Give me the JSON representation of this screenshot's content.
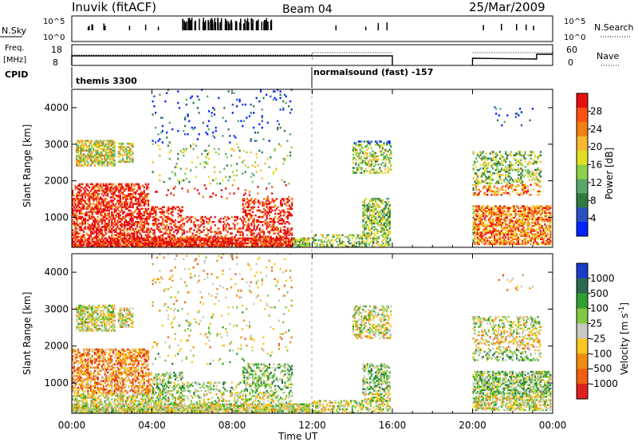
{
  "header": {
    "station": "Inuvik (fitACF)",
    "beam": "Beam 04",
    "date": "25/Mar/2009"
  },
  "top_panels": {
    "nsky_label": "N.Sky",
    "nsky_ticks": [
      "10^5",
      "10^0"
    ],
    "nsearch_label": "N.Search",
    "nsearch_ticks": [
      "10^5",
      "10^0"
    ],
    "freq_label": "Freq.",
    "freq_unit": "[MHz]",
    "freq_ticks": [
      "18",
      "8"
    ],
    "nave_label": "Nave",
    "nave_ticks": [
      "60",
      "0"
    ],
    "cpid_label": "CPID",
    "cpid_segments": [
      "themis 3300",
      "normalsound (fast) -157"
    ]
  },
  "chart_data": [
    {
      "type": "heatmap",
      "name": "power",
      "ylabel": "Slant Range [km]",
      "xlabel": "Time UT",
      "ylim": [
        180,
        4500
      ],
      "yticks": [
        "1000",
        "2000",
        "3000",
        "4000"
      ],
      "xticks": [
        "00:00",
        "04:00",
        "08:00",
        "12:00",
        "16:00",
        "20:00",
        "00:00"
      ],
      "colorbar_label": "Power [dB]",
      "colorbar_ticks": [
        "28",
        "24",
        "20",
        "16",
        "12",
        "8",
        "4"
      ],
      "colors": [
        "#0022ff",
        "#2a4fc0",
        "#2e7a40",
        "#58a86a",
        "#8cd04a",
        "#e0e020",
        "#f8b830",
        "#f08010",
        "#ff5010",
        "#e61010"
      ]
    },
    {
      "type": "heatmap",
      "name": "velocity",
      "ylabel": "Slant Range [km]",
      "xlabel": "Time UT",
      "ylim": [
        180,
        4500
      ],
      "yticks": [
        "1000",
        "2000",
        "3000",
        "4000"
      ],
      "xticks": [
        "00:00",
        "04:00",
        "08:00",
        "12:00",
        "16:00",
        "20:00",
        "00:00"
      ],
      "colorbar_label": "Velocity [m s^-1]",
      "colorbar_ticks": [
        "1000",
        "500",
        "100",
        "25",
        "-25",
        "-100",
        "-500",
        "-1000"
      ],
      "colors": [
        "#1a3cc8",
        "#2a6a50",
        "#30a030",
        "#80c840",
        "#c8c8c0",
        "#f8c820",
        "#f08c14",
        "#f06010",
        "#e02020"
      ]
    }
  ]
}
